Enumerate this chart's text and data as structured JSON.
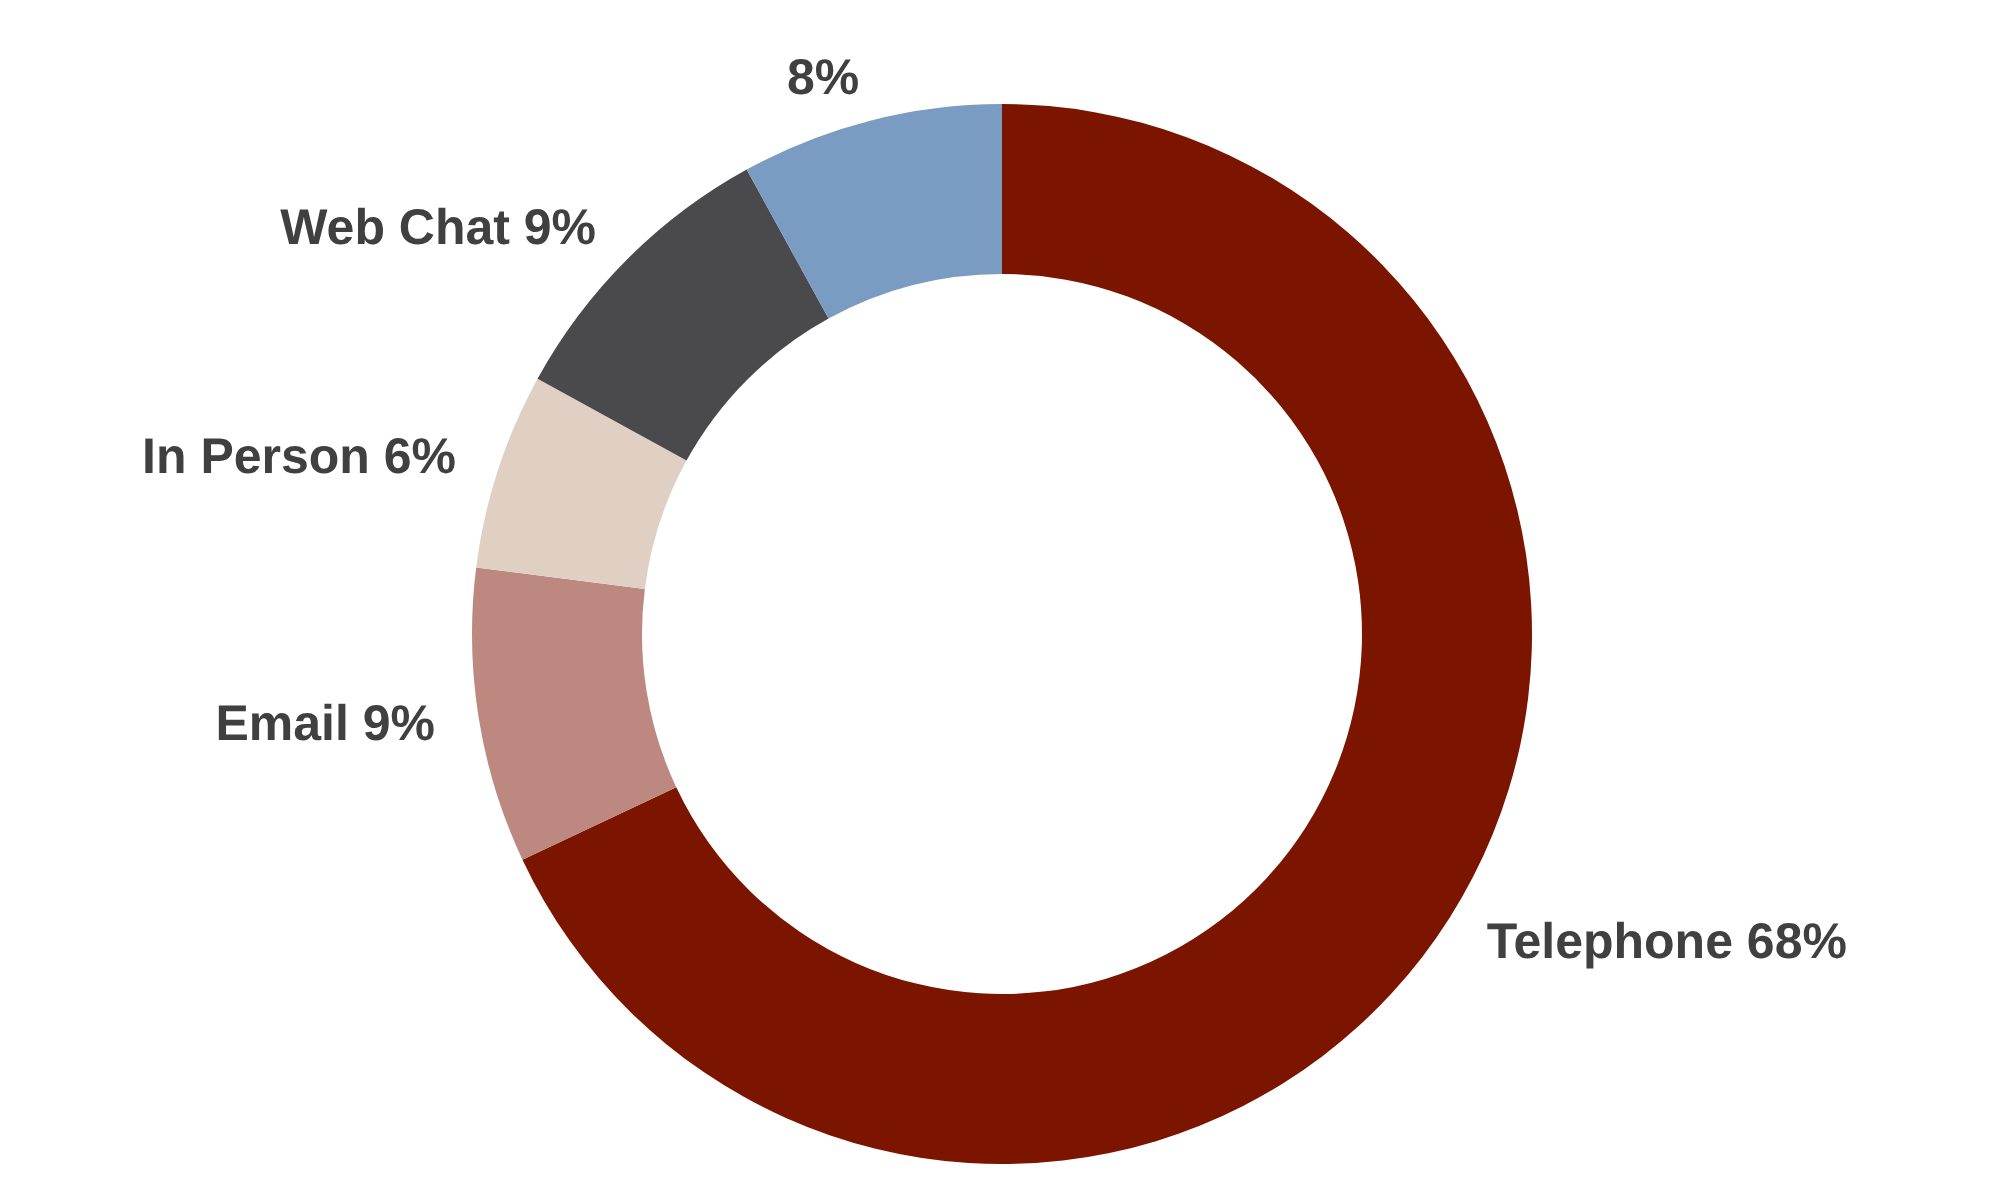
{
  "chart_data": {
    "type": "donut",
    "categories": [
      "Telephone",
      "Email",
      "In Person",
      "Web Chat",
      null
    ],
    "values": [
      68,
      9,
      6,
      9,
      8
    ],
    "value_labels": [
      "68%",
      "9%",
      "6%",
      "9%",
      "8%"
    ],
    "colors": [
      "#7b1500",
      "#bc8880",
      "#dfd0c3",
      "#4a4a4c",
      "#7a9bc2"
    ],
    "legend": false
  }
}
